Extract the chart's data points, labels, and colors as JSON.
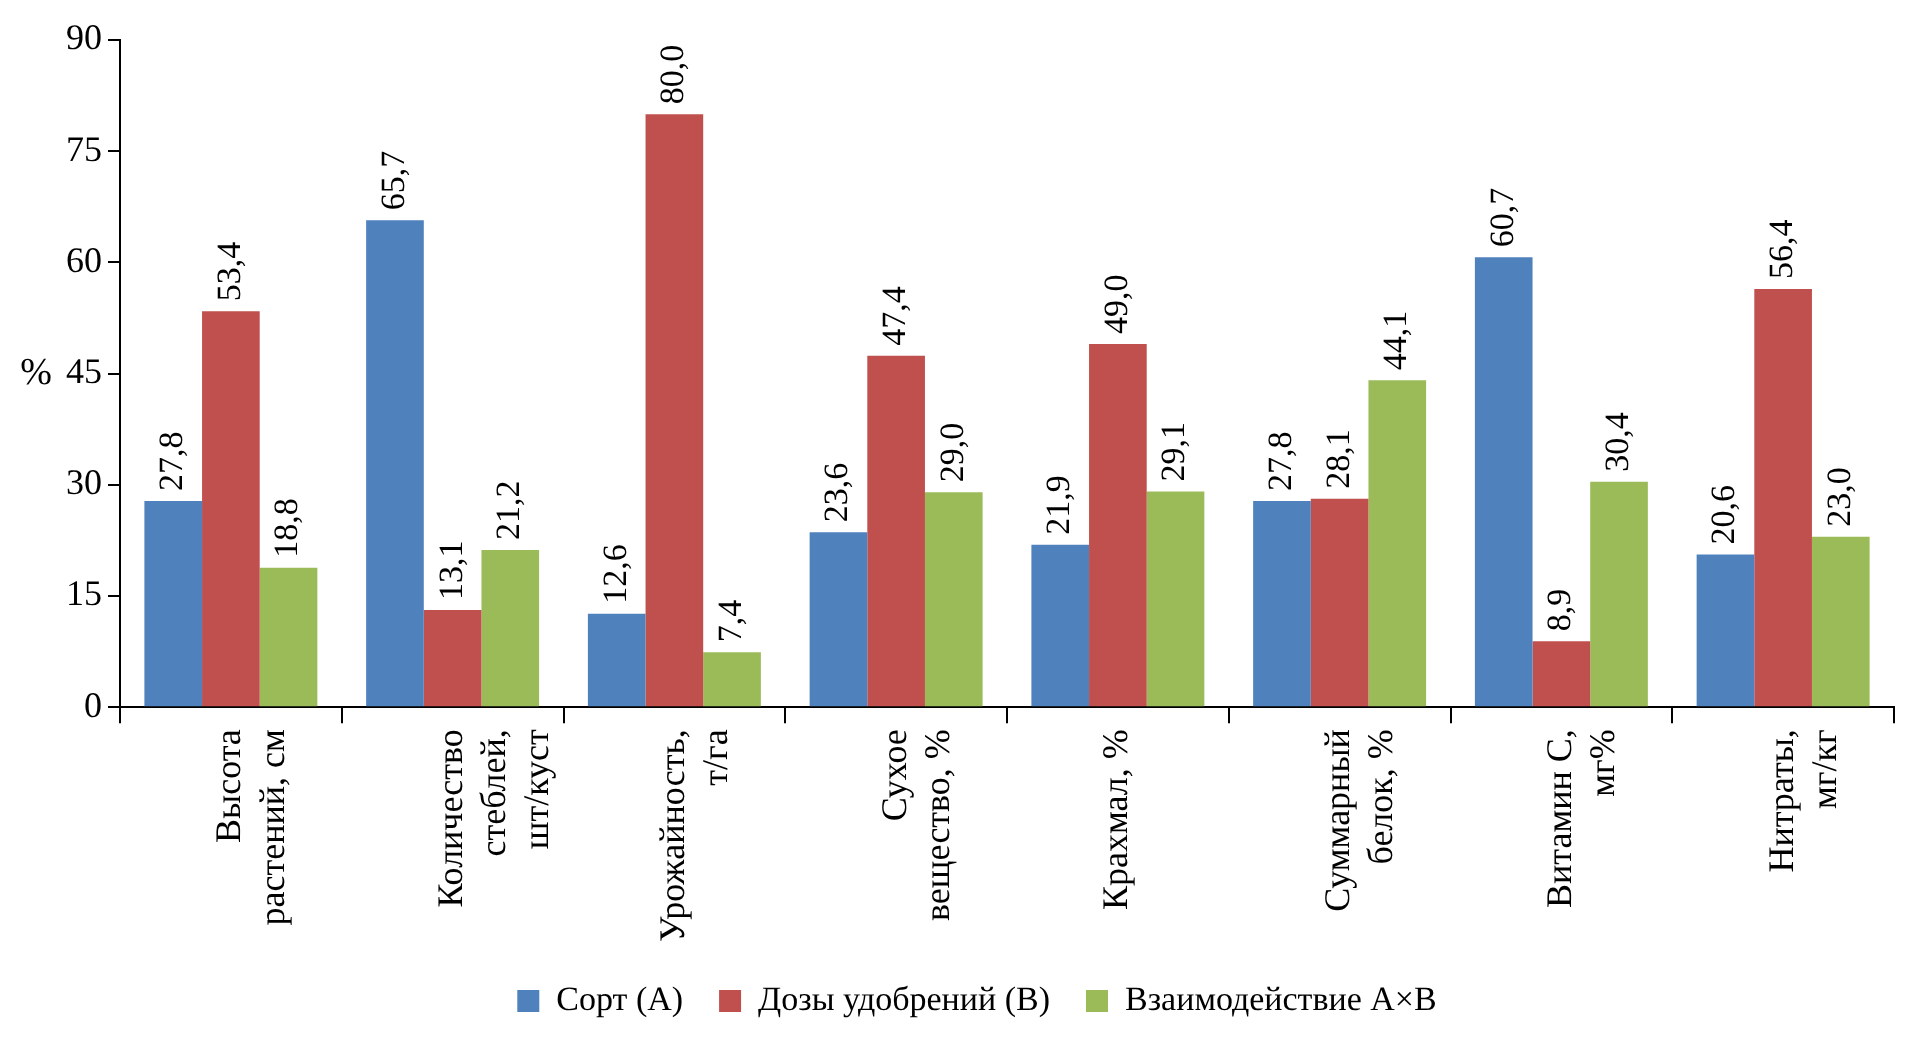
{
  "chart_data": {
    "type": "bar",
    "ylabel": "%",
    "categories": [
      "Высота растений, см",
      "Количество стеблей, шт/куст",
      "Урожайность, т/га",
      "Сухое вещество, %",
      "Крахмал, %",
      "Суммарный белок, %",
      "Витамин С, мг%",
      "Нитраты, мг/кг"
    ],
    "series": [
      {
        "name": "Сорт (А)",
        "color": "#4f81bd",
        "values": [
          27.8,
          65.7,
          12.6,
          23.6,
          21.9,
          27.8,
          60.7,
          20.6
        ],
        "value_labels": [
          "27,8",
          "65,7",
          "12,6",
          "23,6",
          "21,9",
          "27,8",
          "60,7",
          "20,6"
        ]
      },
      {
        "name": "Дозы удобрений (В)",
        "color": "#c0504d",
        "values": [
          53.4,
          13.1,
          80.0,
          47.4,
          49.0,
          28.1,
          8.9,
          56.4
        ],
        "value_labels": [
          "53,4",
          "13,1",
          "80,0",
          "47,4",
          "49,0",
          "28,1",
          "8,9",
          "56,4"
        ]
      },
      {
        "name": "Взаимодействие А×В",
        "color": "#9bbb59",
        "values": [
          18.8,
          21.2,
          7.4,
          29.0,
          29.1,
          44.1,
          30.4,
          23.0
        ],
        "value_labels": [
          "18,8",
          "21,2",
          "7,4",
          "29,0",
          "29,1",
          "44,1",
          "30,4",
          "23,0"
        ]
      }
    ],
    "ylim": [
      0,
      90
    ],
    "yticks": [
      0,
      15,
      30,
      45,
      60,
      75,
      90
    ],
    "grid": false,
    "legend": "bottom"
  }
}
